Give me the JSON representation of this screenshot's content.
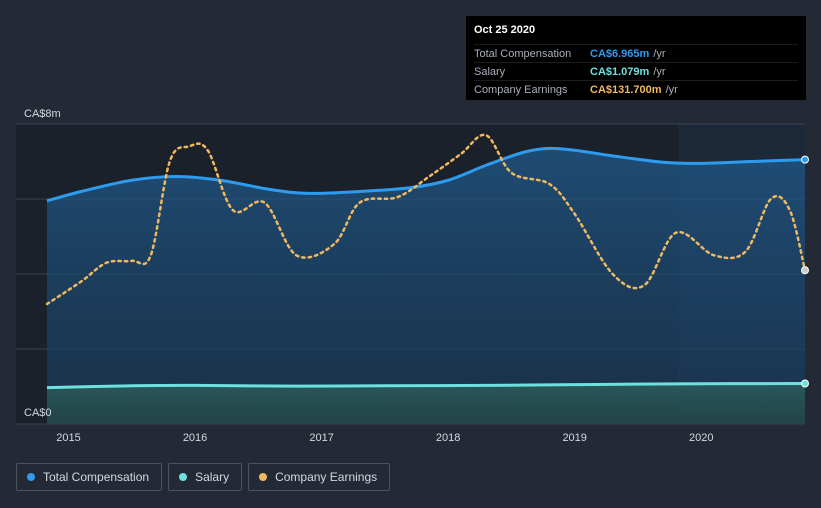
{
  "tooltip": {
    "date": "Oct 25 2020",
    "rows": [
      {
        "label": "Total Compensation",
        "value": "CA$6.965m",
        "unit": "/yr",
        "color": "#2e9bef"
      },
      {
        "label": "Salary",
        "value": "CA$1.079m",
        "unit": "/yr",
        "color": "#6ee0de"
      },
      {
        "label": "Company Earnings",
        "value": "CA$131.700m",
        "unit": "/yr",
        "color": "#f0b860"
      }
    ]
  },
  "legend": [
    {
      "label": "Total Compensation",
      "color": "#2e9bef"
    },
    {
      "label": "Salary",
      "color": "#6ee0de"
    },
    {
      "label": "Company Earnings",
      "color": "#f0b860"
    }
  ],
  "chart_data": {
    "type": "line",
    "ylim": [
      0,
      8
    ],
    "y_tick_labels": [
      "CA$8m",
      "CA$0"
    ],
    "x_tick_labels": [
      "2015",
      "2016",
      "2017",
      "2018",
      "2019",
      "2020"
    ],
    "xlim": [
      2014.83,
      2020.82
    ],
    "grid": true,
    "forecast_region_start": 2019.82,
    "series": [
      {
        "name": "Total Compensation",
        "color": "#2e9bef",
        "style": "solid-area",
        "x": [
          2014.83,
          2015.1,
          2015.5,
          2015.85,
          2016.2,
          2016.6,
          2016.9,
          2017.3,
          2017.7,
          2018.0,
          2018.3,
          2018.6,
          2018.8,
          2019.0,
          2019.3,
          2019.7,
          2020.0,
          2020.4,
          2020.82
        ],
        "values": [
          5.95,
          6.2,
          6.5,
          6.6,
          6.5,
          6.25,
          6.15,
          6.2,
          6.3,
          6.5,
          6.9,
          7.25,
          7.35,
          7.3,
          7.15,
          6.98,
          6.95,
          7.0,
          7.05
        ]
      },
      {
        "name": "Salary",
        "color": "#6ee0de",
        "style": "solid-area",
        "x": [
          2014.83,
          2015.5,
          2016.0,
          2016.8,
          2017.5,
          2018.3,
          2019.0,
          2019.8,
          2020.82
        ],
        "values": [
          0.97,
          1.02,
          1.03,
          1.01,
          1.02,
          1.03,
          1.05,
          1.07,
          1.08
        ]
      },
      {
        "name": "Company Earnings",
        "color": "#f0b860",
        "style": "dotted",
        "x": [
          2014.83,
          2015.1,
          2015.3,
          2015.5,
          2015.65,
          2015.8,
          2015.95,
          2016.1,
          2016.3,
          2016.55,
          2016.8,
          2017.1,
          2017.3,
          2017.6,
          2017.85,
          2018.1,
          2018.3,
          2018.5,
          2018.8,
          2019.0,
          2019.3,
          2019.55,
          2019.8,
          2020.1,
          2020.35,
          2020.55,
          2020.7,
          2020.82
        ],
        "values": [
          3.2,
          3.8,
          4.3,
          4.35,
          4.5,
          7.0,
          7.4,
          7.3,
          5.7,
          5.9,
          4.5,
          4.8,
          5.9,
          6.05,
          6.6,
          7.2,
          7.7,
          6.7,
          6.4,
          5.6,
          4.0,
          3.7,
          5.1,
          4.5,
          4.6,
          6.0,
          5.7,
          4.1
        ]
      }
    ]
  }
}
